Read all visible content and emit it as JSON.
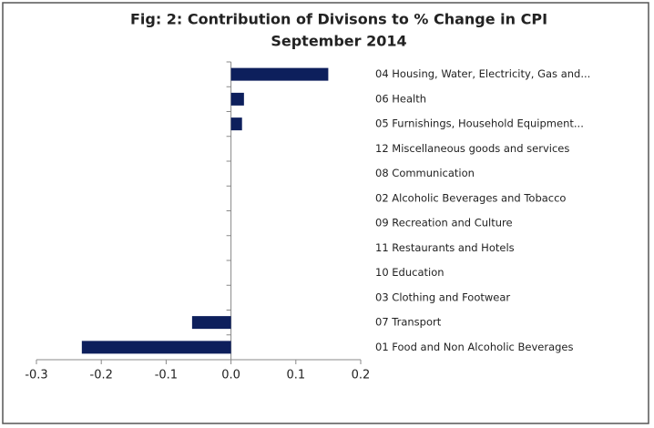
{
  "chart_data": {
    "type": "barh",
    "title": "Fig: 2: Contribution of Divisons to % Change in CPI",
    "subtitle": "September 2014",
    "categories": [
      "04 Housing, Water, Electricity, Gas and...",
      "06 Health",
      "05 Furnishings, Household Equipment...",
      "12 Miscellaneous goods and services",
      "08 Communication",
      "02 Alcoholic Beverages and Tobacco",
      "09 Recreation and Culture",
      "11 Restaurants and Hotels",
      "10 Education",
      "03 Clothing and Footwear",
      "07 Transport",
      "01 Food and Non Alcoholic Beverages"
    ],
    "values": [
      0.15,
      0.02,
      0.017,
      0,
      0,
      0,
      0,
      0,
      0,
      0,
      -0.06,
      -0.23
    ],
    "color": "#0d1f5c",
    "xlim": [
      -0.3,
      0.2
    ],
    "xticks": [
      -0.3,
      -0.2,
      -0.1,
      {
        "value": 0,
        "label": "0.0"
      },
      0.1,
      0.2
    ]
  }
}
